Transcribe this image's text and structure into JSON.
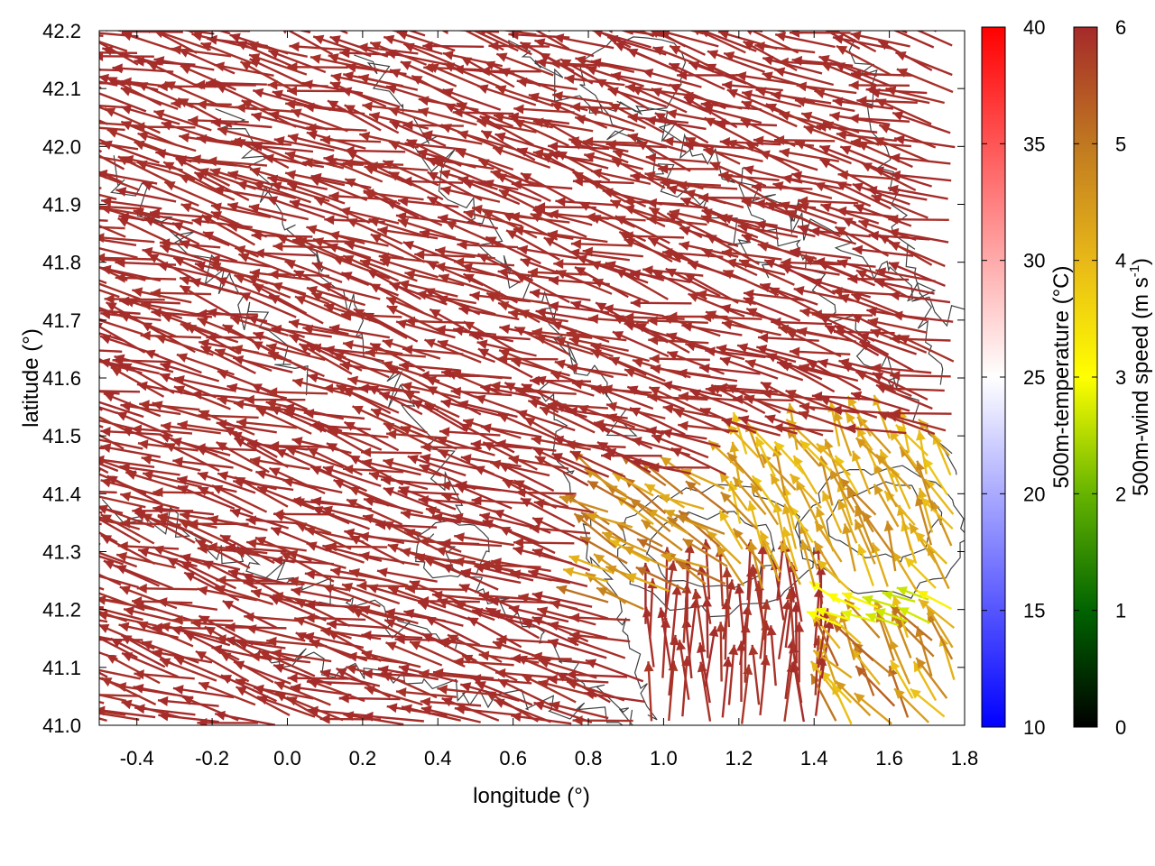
{
  "chart_data": {
    "type": "vector-field",
    "xlabel": "longitude (°)",
    "ylabel": "latitude (°)",
    "xlim": [
      -0.5,
      1.8
    ],
    "ylim": [
      41.0,
      42.2
    ],
    "xticks": [
      -0.4,
      -0.2,
      0.0,
      0.2,
      0.4,
      0.6,
      0.8,
      1.0,
      1.2,
      1.4,
      1.6,
      1.8
    ],
    "xtick_labels": [
      "-0.4",
      "-0.2",
      "0.0",
      "0.2",
      "0.4",
      "0.6",
      "0.8",
      "1.0",
      "1.2",
      "1.4",
      "1.6",
      "1.8"
    ],
    "yticks": [
      41.0,
      41.1,
      41.2,
      41.3,
      41.4,
      41.5,
      41.6,
      41.7,
      41.8,
      41.9,
      42.0,
      42.1,
      42.2
    ],
    "ytick_labels": [
      "41.0",
      "41.1",
      "41.2",
      "41.3",
      "41.4",
      "41.5",
      "41.6",
      "41.7",
      "41.8",
      "41.9",
      "42.0",
      "42.1",
      "42.2"
    ],
    "background_field": "500m-temperature (°C) — appears uniform near 25 °C (white)",
    "vector_field": "500m wind, arrows colored by speed",
    "flow_regimes": [
      {
        "region": "west & north (lon < 0.9 or lat > 41.5)",
        "direction_deg_from_east": 165,
        "speed_ms": 6
      },
      {
        "region": "south-east corridor (lon 0.95–1.45, lat 41.0–41.22)",
        "direction_deg_from_east": 90,
        "speed_ms": 6
      },
      {
        "region": "east (lon 1.2–1.75, lat 41.25–41.5)",
        "direction_deg_from_east": 120,
        "speed_ms": 4
      },
      {
        "region": "east band (lon 1.3–1.75, lat 41.18–41.22)",
        "direction_deg_from_east": 155,
        "speed_ms": 3
      },
      {
        "region": "south-east corner (lon 1.4–1.75, lat 41.0–41.17)",
        "direction_deg_from_east": 130,
        "speed_ms": 4.5
      }
    ],
    "colorbars": [
      {
        "label": "500m-temperature (°C)",
        "min": 10,
        "max": 40,
        "ticks": [
          10,
          15,
          20,
          25,
          30,
          35,
          40
        ],
        "tick_labels": [
          "10",
          "15",
          "20",
          "25",
          "30",
          "35",
          "40"
        ],
        "colors": [
          "#0000ff",
          "#ffffff",
          "#ff0000"
        ]
      },
      {
        "label": "500m-wind speed (m s-1)",
        "label_main": "500m-wind speed (m s",
        "label_sup": "-1",
        "label_tail": ")",
        "min": 0,
        "max": 6,
        "ticks": [
          0,
          1,
          2,
          3,
          4,
          5,
          6
        ],
        "tick_labels": [
          "0",
          "1",
          "2",
          "3",
          "4",
          "5",
          "6"
        ],
        "colors": [
          "#000000",
          "#006400",
          "#66b400",
          "#ffff00",
          "#e8b818",
          "#c07820",
          "#a52a2a"
        ]
      }
    ]
  }
}
